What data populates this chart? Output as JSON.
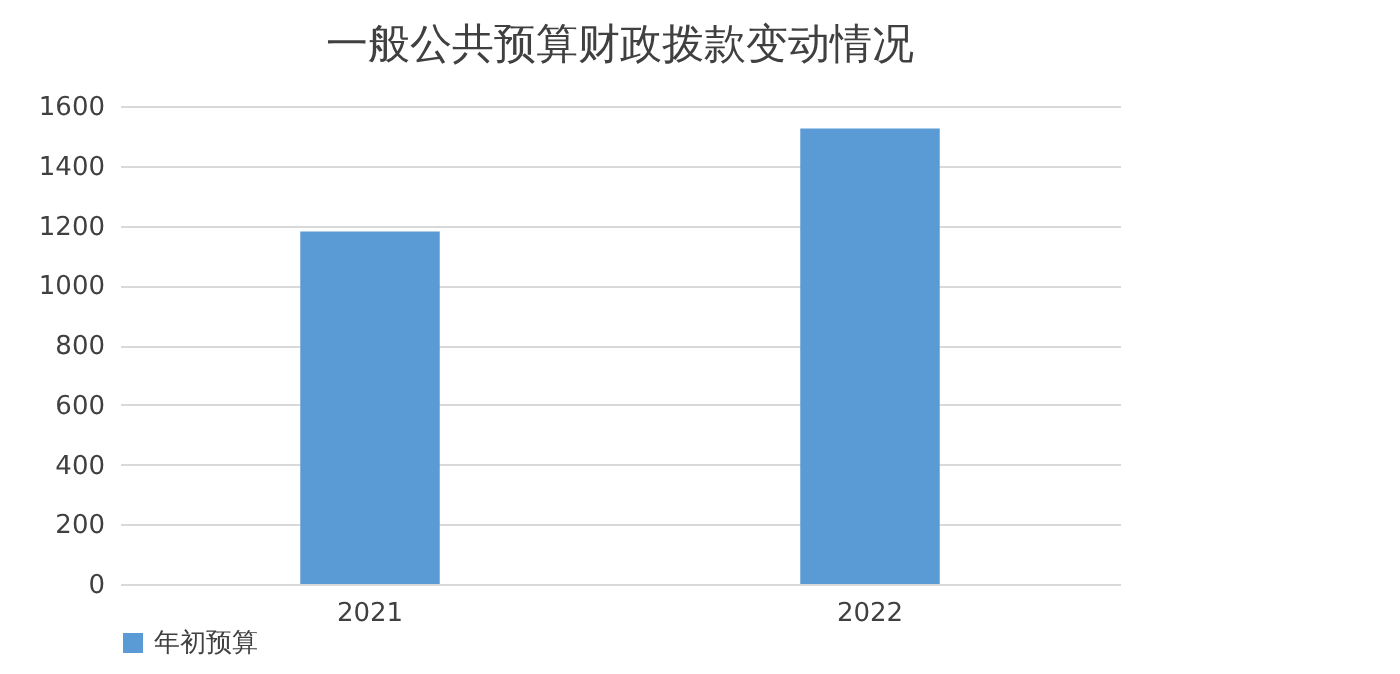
{
  "chart_data": {
    "type": "bar",
    "title": "一般公共预算财政拨款变动情况",
    "categories": [
      "2021",
      "2022"
    ],
    "series": [
      {
        "name": "年初预算",
        "color": "#5b9bd5",
        "values": [
          1180,
          1525
        ]
      }
    ],
    "ylim": [
      0,
      1600
    ],
    "yticks": [
      0,
      200,
      400,
      600,
      800,
      1000,
      1200,
      1400,
      1600
    ],
    "grid": "y",
    "legend": "bottom"
  }
}
